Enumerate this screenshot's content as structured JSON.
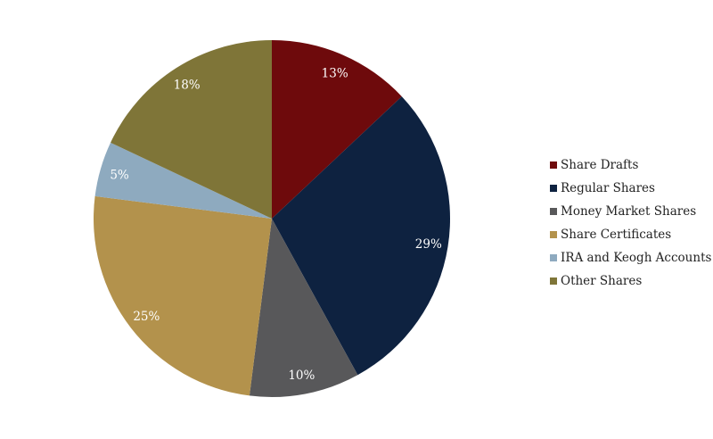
{
  "chart_data": {
    "type": "pie",
    "title": "",
    "categories": [
      "Share Drafts",
      "Regular Shares",
      "Money Market Shares",
      "Share Certificates",
      "IRA and Keogh Accounts",
      "Other Shares"
    ],
    "values": [
      13,
      29,
      10,
      25,
      5,
      18
    ],
    "labels": [
      "13%",
      "29%",
      "10%",
      "25%",
      "5%",
      "18%"
    ],
    "colors": [
      "#6e0a0c",
      "#0e2240",
      "#58585a",
      "#b3924c",
      "#8eaabf",
      "#7f7538"
    ],
    "start": "top, clockwise",
    "legend_position": "right"
  }
}
